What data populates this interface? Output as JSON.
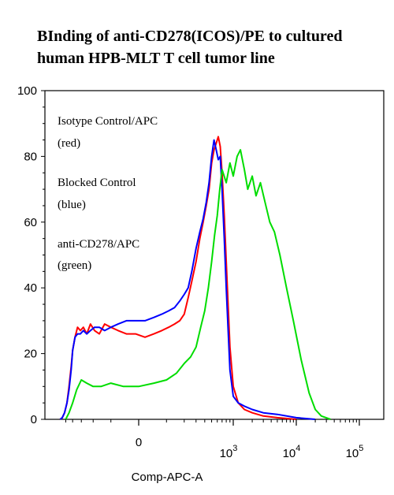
{
  "chart_data": {
    "type": "line",
    "title_line1": "BInding of anti-CD278(ICOS)/PE to cultured",
    "title_line2": "human HPB-MLT T cell tumor line",
    "xlabel": "Comp-APC-A",
    "ylabel": "",
    "ylim": [
      0,
      100
    ],
    "y_ticks": [
      0,
      20,
      40,
      60,
      80,
      100
    ],
    "x_ticks": [
      {
        "label": "0",
        "base": "",
        "exp": ""
      },
      {
        "label": "",
        "base": "10",
        "exp": "3"
      },
      {
        "label": "",
        "base": "10",
        "exp": "4"
      },
      {
        "label": "",
        "base": "10",
        "exp": "5"
      }
    ],
    "x_scale": "biexponential",
    "grid": false,
    "legend": [
      {
        "line1": "Isotype Control/APC",
        "line2": "(red)"
      },
      {
        "line1": "Blocked Control",
        "line2": "(blue)"
      },
      {
        "line1": "anti-CD278/APC",
        "line2": "(green)"
      }
    ],
    "series": [
      {
        "color": "#ff0000",
        "x": [
          -600,
          -560,
          -520,
          -480,
          -450,
          -420,
          -400,
          -370,
          -340,
          -310,
          -280,
          -250,
          -220,
          -190,
          -160,
          -130,
          -100,
          -70,
          -40,
          -10,
          20,
          50,
          80,
          110,
          140,
          170,
          200,
          230,
          260,
          300,
          340,
          380,
          420,
          460,
          500,
          540,
          580,
          620,
          660,
          700,
          750,
          800,
          900,
          1000,
          1200,
          1500,
          2000,
          3000,
          5000,
          10000
        ],
        "y": [
          0,
          0.5,
          2,
          5,
          10,
          16,
          21,
          25,
          28,
          27,
          28,
          26,
          29,
          27,
          26,
          29,
          28,
          27,
          26,
          26,
          25,
          26,
          27,
          28,
          29,
          30,
          32,
          37,
          42,
          48,
          55,
          60,
          65,
          70,
          78,
          82,
          84,
          86,
          83,
          75,
          62,
          48,
          22,
          10,
          5,
          3,
          2,
          1,
          0.5,
          0
        ]
      },
      {
        "color": "#0000ff",
        "x": [
          -600,
          -560,
          -520,
          -480,
          -450,
          -420,
          -400,
          -370,
          -340,
          -310,
          -280,
          -250,
          -220,
          -190,
          -160,
          -130,
          -100,
          -70,
          -40,
          -10,
          20,
          50,
          80,
          110,
          140,
          170,
          200,
          230,
          260,
          300,
          340,
          380,
          420,
          460,
          500,
          540,
          580,
          620,
          660,
          700,
          750,
          800,
          900,
          1000,
          1200,
          1500,
          2000,
          3000,
          5000,
          10000,
          20000
        ],
        "y": [
          0,
          0.5,
          2,
          5,
          9,
          15,
          21,
          25,
          26,
          26,
          27,
          26,
          27,
          28,
          28,
          27,
          28,
          29,
          30,
          30,
          30,
          31,
          32,
          33,
          34,
          36,
          38,
          40,
          45,
          52,
          57,
          61,
          66,
          72,
          80,
          85,
          82,
          79,
          80,
          70,
          55,
          40,
          15,
          7,
          5,
          4,
          3,
          2,
          1.5,
          0.5,
          0
        ]
      },
      {
        "color": "#00dd00",
        "x": [
          -500,
          -450,
          -400,
          -350,
          -300,
          -250,
          -200,
          -150,
          -100,
          -50,
          0,
          50,
          100,
          150,
          200,
          250,
          300,
          350,
          400,
          450,
          500,
          550,
          600,
          650,
          700,
          800,
          900,
          1000,
          1150,
          1300,
          1500,
          1700,
          2000,
          2300,
          2700,
          3200,
          3800,
          4500,
          5500,
          7000,
          9000,
          12000,
          16000,
          20000,
          25000,
          35000
        ],
        "y": [
          0,
          2,
          5,
          9,
          12,
          11,
          10,
          10,
          11,
          10,
          10,
          11,
          12,
          14,
          17,
          19,
          22,
          28,
          33,
          40,
          48,
          56,
          62,
          70,
          76,
          72,
          78,
          74,
          80,
          82,
          76,
          70,
          74,
          68,
          72,
          66,
          60,
          57,
          50,
          40,
          30,
          18,
          8,
          3,
          1,
          0
        ]
      }
    ]
  }
}
